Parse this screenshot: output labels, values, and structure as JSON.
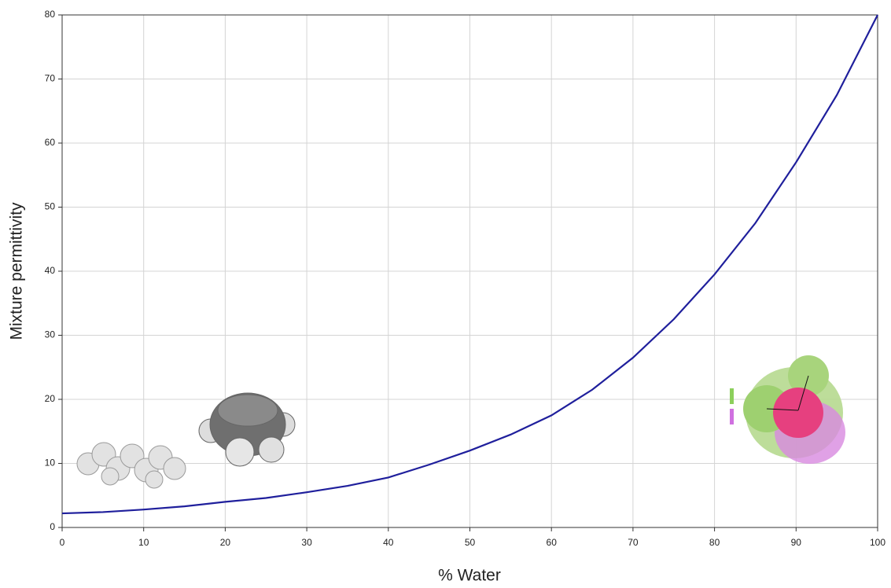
{
  "chart_data": {
    "type": "line",
    "x_label": "% Water",
    "y_label": "Mixture permittivity",
    "series": [
      {
        "name": "Mixture permittivity",
        "color": "#1f1f9c",
        "x": [
          0,
          5,
          10,
          15,
          20,
          25,
          30,
          35,
          40,
          45,
          50,
          55,
          60,
          65,
          70,
          75,
          80,
          85,
          90,
          95,
          100
        ],
        "values": [
          2.2,
          2.4,
          2.8,
          3.3,
          4.0,
          4.6,
          5.5,
          6.5,
          7.8,
          9.8,
          12.0,
          14.5,
          17.5,
          21.5,
          26.5,
          32.5,
          39.5,
          47.5,
          57,
          67.5,
          80
        ]
      }
    ],
    "xlim": [
      0,
      100
    ],
    "xticks": [
      0,
      10,
      20,
      30,
      40,
      50,
      60,
      70,
      80,
      90,
      100
    ],
    "ylim": [
      0,
      80
    ],
    "yticks": [
      0,
      10,
      20,
      30,
      40,
      50,
      60,
      70,
      80
    ],
    "grid": true
  }
}
